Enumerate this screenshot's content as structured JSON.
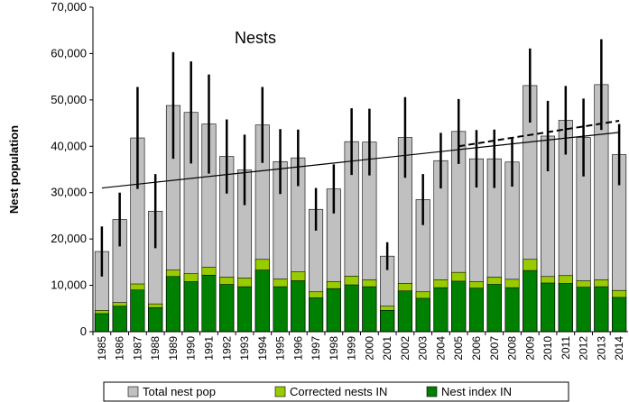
{
  "chart_data": {
    "type": "bar",
    "title": "Nests",
    "y_label": "Nest population",
    "categories": [
      "1985",
      "1986",
      "1987",
      "1988",
      "1989",
      "1990",
      "1991",
      "1992",
      "1993",
      "1994",
      "1995",
      "1996",
      "1997",
      "1998",
      "1999",
      "2000",
      "2001",
      "2002",
      "2003",
      "2004",
      "2005",
      "2006",
      "2007",
      "2008",
      "2009",
      "2010",
      "2011",
      "2012",
      "2013",
      "2014"
    ],
    "series": [
      {
        "name": "Total nest pop",
        "color": "#c0c0c0",
        "values": [
          17300,
          24200,
          41800,
          26000,
          48800,
          47300,
          44800,
          37800,
          34900,
          44600,
          36700,
          37500,
          26400,
          30800,
          41000,
          40900,
          16300,
          41900,
          28500,
          36900,
          43200,
          37300,
          37300,
          36600,
          53100,
          42200,
          45600,
          41900,
          53300,
          38200
        ],
        "errors": [
          5400,
          5800,
          11000,
          8000,
          11500,
          11000,
          10700,
          8000,
          7600,
          8200,
          7000,
          6100,
          4600,
          5300,
          7200,
          7200,
          3000,
          8700,
          5500,
          6000,
          7000,
          6200,
          6300,
          5300,
          8000,
          7600,
          7400,
          8400,
          9800,
          6600
        ]
      },
      {
        "name": "Corrected nests IN",
        "color": "#99cc00",
        "values": [
          4600,
          6300,
          10300,
          6000,
          13300,
          12500,
          13900,
          11800,
          11600,
          15600,
          11400,
          12900,
          8600,
          10800,
          12000,
          11200,
          5500,
          10400,
          8600,
          11200,
          12800,
          10800,
          11800,
          11300,
          15600,
          11900,
          12100,
          11000,
          11200,
          8900
        ]
      },
      {
        "name": "Nest index IN",
        "color": "#008000",
        "values": [
          3900,
          5500,
          9000,
          5200,
          11900,
          10800,
          12200,
          10200,
          9700,
          13300,
          9700,
          11000,
          7300,
          9300,
          10100,
          9700,
          4600,
          8800,
          7200,
          9500,
          10900,
          9400,
          10200,
          9500,
          13200,
          10500,
          10400,
          9600,
          9700,
          7400
        ]
      }
    ],
    "trend_lines": [
      {
        "style": "solid",
        "x": [
          "1985",
          "2014"
        ],
        "values": [
          31000,
          43000
        ]
      },
      {
        "style": "dashed",
        "x": [
          "2005",
          "2014"
        ],
        "values": [
          40000,
          45500
        ]
      }
    ],
    "ylim": [
      0,
      70000
    ],
    "yticks": [
      0,
      {
        "value": 10000,
        "label": "10,000"
      },
      {
        "value": 20000,
        "label": "20,000"
      },
      {
        "value": 30000,
        "label": "30,000"
      },
      {
        "value": 40000,
        "label": "40,000"
      },
      {
        "value": 50000,
        "label": "50,000"
      },
      {
        "value": 60000,
        "label": "60,000"
      },
      {
        "value": 70000,
        "label": "70,000"
      }
    ],
    "legend": "bottom"
  }
}
